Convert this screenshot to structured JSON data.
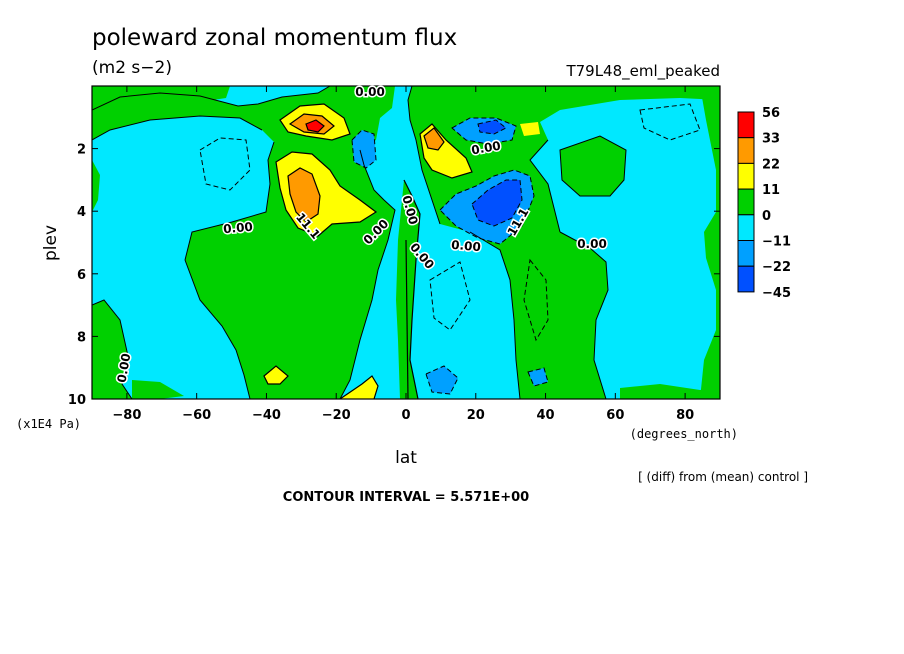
{
  "chart_data": {
    "type": "contour",
    "title": "poleward zonal momentum flux",
    "units": "(m2 s−2)",
    "experiment": "T79L48_eml_peaked",
    "xlabel": "lat",
    "x_units": "(degrees_north)",
    "ylabel": "plev",
    "y_units": "(x1E4 Pa)",
    "xlim": [
      -90,
      90
    ],
    "ylim": [
      10,
      0
    ],
    "x_ticks": [
      "-80",
      "-60",
      "-40",
      "-20",
      "0",
      "20",
      "40",
      "60",
      "80"
    ],
    "y_ticks": [
      "2",
      "4",
      "6",
      "8",
      "10"
    ],
    "contour_interval_text": "CONTOUR INTERVAL = 5.571E+00",
    "comparison_note": "[ (diff) from (mean) control ]",
    "colorbar": {
      "labels": [
        "56",
        "33",
        "22",
        "11",
        "0",
        "−11",
        "−22",
        "−45"
      ],
      "colors": [
        "#ff0000",
        "#ff9a00",
        "#ffff00",
        "#00d000",
        "#00e8ff",
        "#00a0ff",
        "#0050ff"
      ]
    },
    "contour_labels": [
      "0.00",
      "0.00",
      "0.00",
      "0.00",
      "0.00",
      "0.00",
      "0.00",
      "0.00",
      "0.00",
      "11.1",
      "11.1"
    ]
  }
}
